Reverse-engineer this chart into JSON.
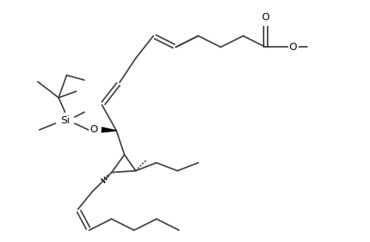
{
  "bg_color": "#ffffff",
  "line_color": "#404040",
  "text_color": "#000000",
  "lw": 1.3,
  "figsize": [
    4.6,
    3.0
  ],
  "dpi": 100,
  "xlim": [
    0.0,
    4.6
  ],
  "ylim": [
    0.0,
    3.0
  ]
}
